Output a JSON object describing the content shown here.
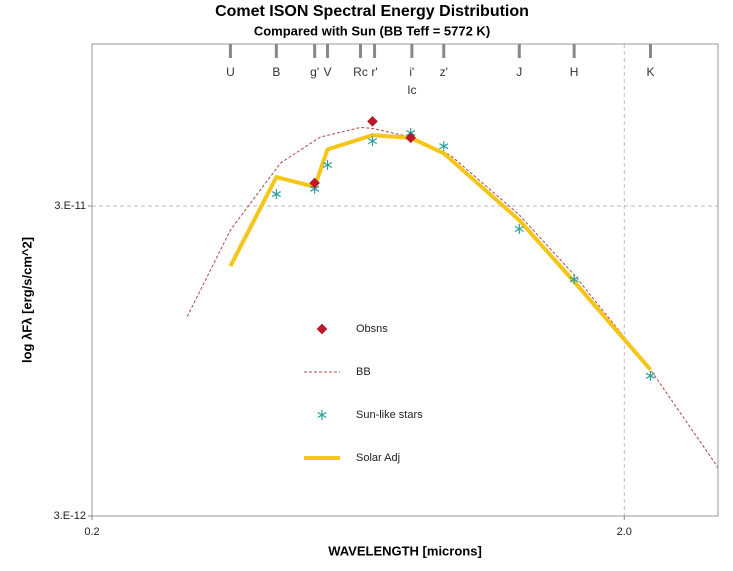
{
  "chart_data": {
    "type": "line",
    "title": "Comet ISON Spectral Energy Distribution",
    "subtitle": "Compared with Sun (BB Teff = 5772 K)",
    "x_label": "WAVELENGTH [microns]",
    "y_label": "log λFλ [erg/s/cm^2]",
    "xlog": true,
    "ylog": true,
    "xlim": [
      0.2,
      3.0
    ],
    "ylim": [
      3e-12,
      1e-10
    ],
    "xticks": [
      0.2,
      {
        "value": 2,
        "label": "2.0"
      }
    ],
    "yticks": [
      {
        "value": 3e-12,
        "label": "3.E-12"
      },
      {
        "value": 3e-11,
        "label": "3.E-11"
      }
    ],
    "grid": true,
    "bands": [
      {
        "label": "U",
        "x": 0.364
      },
      {
        "label": "B",
        "x": 0.444
      },
      {
        "label": "g'",
        "x": 0.524
      },
      {
        "label": "V",
        "x": 0.554
      },
      {
        "label": "Rc",
        "x": 0.639
      },
      {
        "label": "r'",
        "x": 0.679
      },
      {
        "label": "i'",
        "x": 0.798
      },
      {
        "label": "Ic",
        "x": 0.798
      },
      {
        "label": "z'",
        "x": 0.916
      },
      {
        "label": "J",
        "x": 1.27
      },
      {
        "label": "H",
        "x": 1.61
      },
      {
        "label": "K",
        "x": 2.24
      }
    ],
    "series": [
      {
        "name": "Obsns",
        "color": "#c0182a",
        "marker": "diamond",
        "line": null,
        "x": [
          0.524,
          0.673,
          0.794
        ],
        "values": [
          3.56e-11,
          5.63e-11,
          4.98e-11
        ]
      },
      {
        "name": "BB",
        "color": "#b04848",
        "marker": null,
        "line": "dashed",
        "x": [
          0.302,
          0.364,
          0.452,
          0.537,
          0.639,
          0.673,
          0.794,
          0.944,
          1.27,
          1.61,
          2.24,
          3.0
        ],
        "values": [
          1.32e-11,
          2.51e-11,
          4.13e-11,
          5.01e-11,
          5.38e-11,
          5.34e-11,
          5.01e-11,
          4.37e-11,
          2.81e-11,
          1.8e-11,
          8.9e-12,
          4.3e-12
        ]
      },
      {
        "name": "Sun-like stars",
        "color": "#2e9ea0",
        "marker": "asterisk",
        "line": null,
        "x": [
          0.444,
          0.524,
          0.554,
          0.673,
          0.794,
          0.916,
          1.27,
          1.61,
          2.24
        ],
        "values": [
          3.28e-11,
          3.41e-11,
          4.07e-11,
          4.86e-11,
          5.16e-11,
          4.68e-11,
          2.53e-11,
          1.74e-11,
          8.5e-12
        ]
      },
      {
        "name": "Solar Adj",
        "color": "#f5c518",
        "marker": null,
        "line": "solid",
        "x": [
          0.364,
          0.444,
          0.524,
          0.554,
          0.673,
          0.794,
          0.916,
          1.27,
          1.61,
          2.24
        ],
        "values": [
          1.92e-11,
          3.72e-11,
          3.46e-11,
          4.57e-11,
          5.08e-11,
          4.98e-11,
          4.44e-11,
          2.7e-11,
          1.71e-11,
          8.9e-12
        ]
      }
    ]
  }
}
